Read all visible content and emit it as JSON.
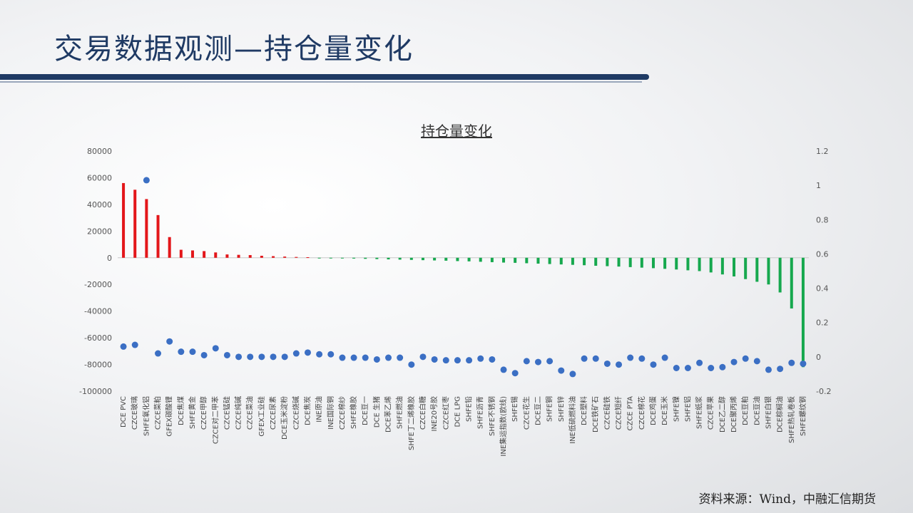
{
  "header": {
    "title": "交易数据观测—持仓量变化"
  },
  "footer": {
    "source": "资料来源：Wind，中融汇信期货"
  },
  "colors": {
    "positive": "#e3161a",
    "negative": "#16a84e",
    "dot": "#3b6fc4",
    "title": "#1f3a64"
  },
  "chart_data": {
    "type": "bar",
    "title": "持仓量变化",
    "xlabel": "",
    "ylabel": "",
    "ylim": [
      -100000,
      80000
    ],
    "y2lim": [
      -0.2,
      1.2
    ],
    "yticks": [
      "80000",
      "60000",
      "40000",
      "20000",
      "0",
      "-20000",
      "-40000",
      "-60000",
      "-80000",
      "-100000"
    ],
    "y2ticks": [
      "1.2",
      "1",
      "0.8",
      "0.6",
      "0.4",
      "0.2",
      "0",
      "-0.2"
    ],
    "categories": [
      "DCE PVC",
      "CZCE玻璃",
      "SHFE氧化铝",
      "CZCE菜粕",
      "GFEX碳酸锂",
      "DCE焦煤",
      "SHFE黄金",
      "CZCE甲醇",
      "CZCE对二甲苯",
      "CZCE锰硅",
      "CZCE纯碱",
      "CZCE菜油",
      "GFEX工业硅",
      "CZCE尿素",
      "DCE玉米淀粉",
      "CZCE烧碱",
      "DCE焦炭",
      "INE原油",
      "INE国际铜",
      "CZCE棉纱",
      "SHFE橡胶",
      "DCE豆一",
      "DCE 生猪",
      "DCE苯乙烯",
      "SHFE燃油",
      "SHFE丁二烯橡胶",
      "CZCE白糖",
      "INE20号胶",
      "CZCE红枣",
      "DCE LPG",
      "SHFE铅",
      "SHFE沥青",
      "SHFE不锈钢",
      "INE集运指数(欧线)",
      "SHFE锡",
      "CZCE花生",
      "DCE豆二",
      "SHFE铜",
      "SHFE锌",
      "INE低硫燃料油",
      "DCE塑料",
      "DCE铁矿石",
      "CZCE硅铁",
      "CZCE短纤",
      "CZCE PTA",
      "CZCE棉花",
      "DCE鸡蛋",
      "DCE玉米",
      "SHFE镍",
      "SHFE铝",
      "SHFE纸浆",
      "CZCE苹果",
      "DCE乙二醇",
      "DCE聚丙烯",
      "DCE豆粕",
      "DCE豆油",
      "SHFE白银",
      "DCE棕榈油",
      "SHFE热轧卷板",
      "SHFE螺纹钢"
    ],
    "series": [
      {
        "values": [
          56000,
          51000,
          44000,
          32000,
          15500,
          6000,
          5500,
          5000,
          4000,
          2500,
          2200,
          2000,
          1500,
          1200,
          900,
          600,
          400,
          -200,
          -300,
          -400,
          -600,
          -800,
          -1000,
          -1200,
          -1400,
          -1600,
          -1800,
          -2000,
          -2200,
          -2500,
          -2700,
          -3000,
          -3300,
          -3600,
          -3800,
          -4100,
          -4400,
          -4700,
          -5000,
          -5300,
          -5600,
          -6000,
          -6300,
          -6600,
          -7000,
          -7400,
          -7800,
          -8300,
          -8800,
          -9400,
          -10000,
          -11000,
          -12500,
          -14000,
          -16000,
          -18000,
          -20000,
          -26000,
          -38000,
          -82000
        ]
      },
      {
        "values": [
          0.06,
          0.07,
          1.03,
          0.02,
          0.09,
          0.03,
          0.03,
          0.01,
          0.05,
          0.01,
          0.0,
          0.0,
          0.0,
          0.0,
          0.0,
          0.02,
          0.025,
          0.015,
          0.015,
          -0.005,
          -0.005,
          -0.005,
          -0.015,
          -0.005,
          -0.005,
          -0.045,
          0.0,
          -0.015,
          -0.02,
          -0.02,
          -0.02,
          -0.01,
          -0.015,
          -0.075,
          -0.095,
          -0.025,
          -0.03,
          -0.025,
          -0.08,
          -0.1,
          -0.01,
          -0.01,
          -0.04,
          -0.045,
          -0.005,
          -0.01,
          -0.045,
          -0.005,
          -0.065,
          -0.065,
          -0.035,
          -0.065,
          -0.06,
          -0.03,
          -0.01,
          -0.025,
          -0.075,
          -0.07,
          -0.035,
          -0.04
        ]
      }
    ],
    "grid": false,
    "legend": "none"
  }
}
